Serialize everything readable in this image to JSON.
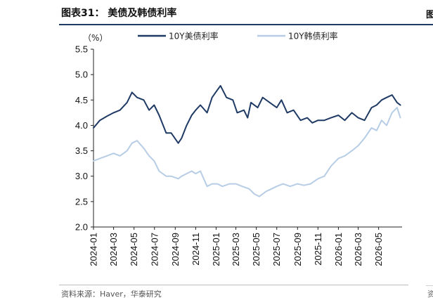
{
  "header": {
    "figure_title": "图表31：  美债及韩债利率"
  },
  "edge_fragments": {
    "top_right": "图",
    "bottom_right": "资"
  },
  "footer": {
    "source": "资料来源：Haver，华泰研究"
  },
  "colors": {
    "us_series": "#1f3a64",
    "kr_series": "#b7cde5",
    "axis": "#222222",
    "rule": "#1f3a64"
  },
  "chart_data": {
    "type": "line",
    "title": "",
    "unit_label": "（%）",
    "xlabel": "",
    "ylabel": "",
    "ylim": [
      2.0,
      5.5
    ],
    "yticks": [
      "5.5",
      "5.0",
      "4.5",
      "4.0",
      "3.5",
      "3.0",
      "2.5",
      "2.0"
    ],
    "xlim": [
      "2024-01-01",
      "2026-07-10"
    ],
    "xticks": [
      "2024-01",
      "2024-03",
      "2024-05",
      "2024-07",
      "2024-09",
      "2024-11",
      "2025-01",
      "2025-03",
      "2025-05",
      "2025-07",
      "2025-09",
      "2025-11",
      "2026-01",
      "2026-03",
      "2026-05"
    ],
    "grid": false,
    "legend_position": "top",
    "series": [
      {
        "name": "10Y美债利率",
        "color": "#1f3a64",
        "x": [
          "2024-01-01",
          "2024-01-20",
          "2024-02-10",
          "2024-03-01",
          "2024-03-20",
          "2024-04-10",
          "2024-04-25",
          "2024-05-10",
          "2024-05-30",
          "2024-06-15",
          "2024-06-30",
          "2024-07-15",
          "2024-08-05",
          "2024-08-20",
          "2024-09-10",
          "2024-09-20",
          "2024-10-05",
          "2024-10-20",
          "2024-11-01",
          "2024-11-15",
          "2024-12-05",
          "2024-12-20",
          "2025-01-05",
          "2025-01-14",
          "2025-02-01",
          "2025-02-20",
          "2025-03-05",
          "2025-03-25",
          "2025-04-05",
          "2025-04-15",
          "2025-05-05",
          "2025-05-20",
          "2025-06-10",
          "2025-07-01",
          "2025-07-15",
          "2025-08-01",
          "2025-08-20",
          "2025-09-10",
          "2025-09-30",
          "2025-10-15",
          "2025-11-01",
          "2025-11-20",
          "2025-12-10",
          "2026-01-01",
          "2026-01-20",
          "2026-02-10",
          "2026-03-01",
          "2026-03-20",
          "2026-04-10",
          "2026-04-25",
          "2026-05-10",
          "2026-05-25",
          "2026-06-10",
          "2026-06-25",
          "2026-07-05"
        ],
        "y": [
          3.95,
          4.1,
          4.18,
          4.25,
          4.3,
          4.45,
          4.65,
          4.55,
          4.5,
          4.3,
          4.4,
          4.2,
          3.85,
          3.85,
          3.65,
          3.75,
          4.0,
          4.2,
          4.3,
          4.4,
          4.25,
          4.55,
          4.7,
          4.78,
          4.55,
          4.5,
          4.25,
          4.3,
          4.15,
          4.45,
          4.35,
          4.55,
          4.45,
          4.35,
          4.5,
          4.25,
          4.3,
          4.1,
          4.15,
          4.05,
          4.1,
          4.1,
          4.15,
          4.2,
          4.1,
          4.25,
          4.15,
          4.1,
          4.35,
          4.4,
          4.5,
          4.55,
          4.6,
          4.45,
          4.4
        ]
      },
      {
        "name": "10Y韩债利率",
        "color": "#b7cde5",
        "x": [
          "2024-01-01",
          "2024-01-20",
          "2024-02-10",
          "2024-03-01",
          "2024-03-20",
          "2024-04-10",
          "2024-04-25",
          "2024-05-10",
          "2024-05-30",
          "2024-06-15",
          "2024-06-30",
          "2024-07-15",
          "2024-08-05",
          "2024-08-20",
          "2024-09-10",
          "2024-09-20",
          "2024-10-05",
          "2024-10-20",
          "2024-11-01",
          "2024-11-15",
          "2024-12-05",
          "2024-12-20",
          "2025-01-05",
          "2025-01-20",
          "2025-02-10",
          "2025-03-01",
          "2025-03-20",
          "2025-04-10",
          "2025-04-25",
          "2025-05-10",
          "2025-05-30",
          "2025-06-15",
          "2025-07-01",
          "2025-07-20",
          "2025-08-10",
          "2025-09-01",
          "2025-09-20",
          "2025-10-10",
          "2025-11-01",
          "2025-11-20",
          "2025-12-10",
          "2026-01-01",
          "2026-01-20",
          "2026-02-10",
          "2026-03-01",
          "2026-03-20",
          "2026-04-10",
          "2026-04-25",
          "2026-05-10",
          "2026-05-25",
          "2026-06-10",
          "2026-06-25",
          "2026-07-05"
        ],
        "y": [
          3.3,
          3.35,
          3.4,
          3.45,
          3.4,
          3.5,
          3.65,
          3.7,
          3.55,
          3.4,
          3.3,
          3.1,
          3.0,
          3.0,
          2.95,
          3.0,
          3.05,
          3.1,
          3.05,
          3.1,
          2.8,
          2.85,
          2.85,
          2.8,
          2.85,
          2.85,
          2.8,
          2.75,
          2.65,
          2.6,
          2.7,
          2.75,
          2.8,
          2.85,
          2.8,
          2.85,
          2.82,
          2.85,
          2.95,
          3.0,
          3.2,
          3.35,
          3.4,
          3.5,
          3.6,
          3.75,
          3.95,
          3.9,
          4.1,
          4.0,
          4.25,
          4.35,
          4.15
        ]
      }
    ]
  }
}
